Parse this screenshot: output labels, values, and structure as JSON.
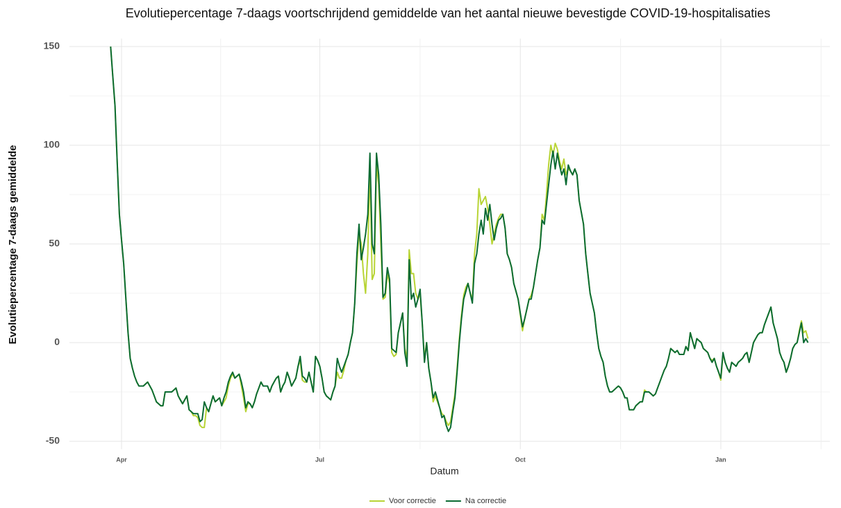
{
  "chart_data": {
    "type": "line",
    "title": "Evolutiepercentage 7-daags  voortschrijdend gemiddelde van het aantal nieuwe bevestigde COVID-19-hospitalisaties",
    "x_label": "Datum",
    "y_label": "Evolutiepercentage 7-daags gemiddelde",
    "categories": [
      null,
      null,
      null,
      null,
      null,
      "Apr",
      null,
      null,
      null,
      null,
      null,
      null,
      null,
      null,
      null,
      null,
      null,
      null,
      null,
      null,
      null,
      null,
      null,
      null,
      null,
      null,
      null,
      null,
      null,
      null,
      null,
      null,
      null,
      null,
      null,
      null,
      null,
      null,
      null,
      null,
      null,
      null,
      null,
      null,
      null,
      null,
      null,
      null,
      null,
      null,
      null,
      null,
      null,
      null,
      null,
      null,
      null,
      null,
      null,
      null,
      null,
      null,
      null,
      null,
      null,
      null,
      null,
      null,
      null,
      null,
      null,
      null,
      null,
      null,
      null,
      null,
      null,
      null,
      null,
      null,
      null,
      null,
      null,
      null,
      null,
      null,
      null,
      null,
      null,
      null,
      null,
      null,
      null,
      null,
      null,
      null,
      "Jul",
      null,
      null,
      null,
      null,
      null,
      null,
      null,
      null,
      null,
      null,
      null,
      null,
      null,
      null,
      null,
      null,
      null,
      null,
      null,
      null,
      null,
      null,
      null,
      null,
      null,
      null,
      null,
      null,
      null,
      null,
      null,
      null,
      null,
      null,
      null,
      null,
      null,
      null,
      null,
      null,
      null,
      null,
      null,
      null,
      null,
      null,
      null,
      null,
      null,
      null,
      null,
      null,
      null,
      null,
      null,
      null,
      null,
      null,
      null,
      null,
      null,
      null,
      null,
      null,
      null,
      null,
      null,
      null,
      null,
      null,
      null,
      null,
      null,
      null,
      null,
      null,
      null,
      null,
      null,
      null,
      null,
      null,
      null,
      null,
      null,
      null,
      null,
      null,
      null,
      null,
      null,
      "Oct",
      null,
      null,
      null,
      null,
      null,
      null,
      null,
      null,
      null,
      null,
      null,
      null,
      null,
      null,
      null,
      null,
      null,
      null,
      null,
      null,
      null,
      null,
      null,
      null,
      null,
      null,
      null,
      null,
      null,
      null,
      null,
      null,
      null,
      null,
      null,
      null,
      null,
      null,
      null,
      null,
      null,
      null,
      null,
      null,
      null,
      null,
      null,
      null,
      null,
      null,
      null,
      null,
      null,
      null,
      null,
      null,
      null,
      null,
      null,
      null,
      null,
      null,
      null,
      null,
      null,
      null,
      null,
      null,
      null,
      null,
      null,
      null,
      null,
      null,
      null,
      null,
      null,
      null,
      null,
      null,
      null,
      null,
      null,
      null,
      null,
      null,
      null,
      null,
      null,
      null,
      null,
      "Jan",
      null,
      null,
      null,
      null,
      null,
      null,
      null,
      null,
      null,
      null,
      null,
      null,
      null,
      null,
      null,
      null,
      null,
      null,
      null,
      null,
      null,
      null,
      null,
      null,
      null,
      null,
      null,
      null,
      null,
      null,
      null,
      null,
      null,
      null,
      null,
      null,
      null,
      null,
      null,
      null
    ],
    "series": [
      {
        "name": "Voor correctie",
        "color": "#b8d435",
        "values": [
          150,
          135,
          120,
          92,
          65,
          52,
          40,
          22,
          5,
          -8,
          -13,
          -17,
          -20,
          -22,
          -22,
          -22,
          -21,
          -20,
          -22,
          -24,
          -27,
          -30,
          -31,
          -32,
          -32,
          -25,
          -25,
          -25,
          -25,
          -24,
          -23,
          -27,
          -29,
          -31,
          -29,
          -27,
          -34,
          -35,
          -37,
          -37,
          -38,
          -42,
          -43,
          -43,
          -33,
          -35,
          -31,
          -27,
          -30,
          -29,
          -28,
          -32,
          -30,
          -28,
          -22,
          -18,
          -16,
          -18,
          -17,
          -16,
          -22,
          -28,
          -35,
          -31,
          -31,
          -33,
          -30,
          -26,
          -23,
          -20,
          -22,
          -22,
          -22,
          -25,
          -22,
          -20,
          -18,
          -17,
          -25,
          -22,
          -20,
          -15,
          -18,
          -22,
          -20,
          -18,
          -12,
          -9,
          -19,
          -20,
          -20,
          -15,
          -20,
          -25,
          -7,
          -9,
          -12,
          -18,
          -25,
          -27,
          -28,
          -29,
          -25,
          -22,
          -15,
          -18,
          -18,
          -14,
          -9,
          -6,
          0,
          5,
          20,
          40,
          55,
          50,
          35,
          25,
          45,
          90,
          32,
          35,
          90,
          80,
          50,
          22,
          23,
          35,
          30,
          -5,
          -7,
          -6,
          5,
          10,
          15,
          -3,
          -8,
          47,
          35,
          35,
          25,
          22,
          25,
          10,
          -8,
          0,
          -13,
          -20,
          -30,
          -27,
          -30,
          -33,
          -36,
          -37,
          -40,
          -42,
          -40,
          -33,
          -26,
          -13,
          2,
          14,
          24,
          28,
          30,
          25,
          22,
          45,
          55,
          78,
          70,
          72,
          74,
          68,
          60,
          50,
          55,
          60,
          63,
          65,
          65,
          58,
          45,
          42,
          38,
          30,
          26,
          22,
          14,
          6,
          12,
          17,
          22,
          24,
          28,
          35,
          42,
          48,
          65,
          62,
          75,
          90,
          100,
          95,
          101,
          98,
          92,
          88,
          93,
          85,
          88,
          87,
          85,
          88,
          85,
          72,
          66,
          60,
          45,
          35,
          25,
          20,
          15,
          5,
          -3,
          -7,
          -10,
          -17,
          -22,
          -25,
          -25,
          -24,
          -23,
          -22,
          -23,
          -25,
          -28,
          -28,
          -34,
          -34,
          -34,
          -32,
          -31,
          -30,
          -30,
          -24,
          -25,
          -25,
          -26,
          -27,
          -26,
          -23,
          -20,
          -17,
          -14,
          -12,
          -8,
          -3,
          -4,
          -5,
          -4,
          -6,
          -6,
          -6,
          -2,
          -4,
          5,
          1,
          -3,
          2,
          1,
          0,
          -3,
          -4,
          -5,
          -8,
          -9,
          -8,
          -12,
          -15,
          -19,
          -6,
          -10,
          -13,
          -15,
          -10,
          -11,
          -12,
          -10,
          -9,
          -8,
          -6,
          -5,
          -10,
          -5,
          0,
          2,
          4,
          5,
          5,
          9,
          12,
          15,
          18,
          10,
          6,
          2,
          -5,
          -8,
          -10,
          -15,
          -12,
          -8,
          -3,
          -1,
          0,
          6,
          11,
          5,
          6,
          2
        ]
      },
      {
        "name": "Na correctie",
        "color": "#0b6b33",
        "values": [
          150,
          135,
          120,
          92,
          65,
          52,
          40,
          22,
          5,
          -8,
          -13,
          -17,
          -20,
          -22,
          -22,
          -22,
          -21,
          -20,
          -22,
          -24,
          -27,
          -30,
          -31,
          -32,
          -32,
          -25,
          -25,
          -25,
          -25,
          -24,
          -23,
          -27,
          -29,
          -31,
          -29,
          -27,
          -34,
          -35,
          -36,
          -36,
          -36,
          -40,
          -39,
          -30,
          -33,
          -35,
          -31,
          -27,
          -30,
          -29,
          -28,
          -32,
          -28,
          -25,
          -20,
          -17,
          -15,
          -18,
          -17,
          -16,
          -20,
          -25,
          -33,
          -30,
          -31,
          -33,
          -30,
          -26,
          -23,
          -20,
          -22,
          -22,
          -22,
          -25,
          -22,
          -20,
          -18,
          -17,
          -25,
          -22,
          -20,
          -15,
          -18,
          -22,
          -20,
          -18,
          -12,
          -7,
          -17,
          -18,
          -20,
          -15,
          -20,
          -25,
          -7,
          -9,
          -12,
          -18,
          -25,
          -27,
          -28,
          -29,
          -25,
          -22,
          -8,
          -12,
          -15,
          -12,
          -9,
          -6,
          0,
          5,
          20,
          45,
          60,
          42,
          48,
          55,
          65,
          96,
          50,
          45,
          96,
          85,
          60,
          23,
          25,
          38,
          32,
          -3,
          -4,
          -5,
          5,
          10,
          15,
          -5,
          -12,
          42,
          22,
          25,
          18,
          22,
          27,
          10,
          -10,
          0,
          -13,
          -20,
          -28,
          -25,
          -29,
          -33,
          -38,
          -37,
          -42,
          -45,
          -43,
          -35,
          -28,
          -15,
          0,
          12,
          22,
          26,
          30,
          25,
          20,
          40,
          45,
          55,
          62,
          55,
          68,
          62,
          70,
          60,
          52,
          58,
          62,
          63,
          65,
          58,
          45,
          42,
          38,
          30,
          26,
          22,
          15,
          8,
          12,
          17,
          22,
          22,
          28,
          35,
          42,
          48,
          62,
          60,
          70,
          80,
          90,
          97,
          88,
          96,
          90,
          85,
          88,
          80,
          90,
          87,
          85,
          88,
          85,
          72,
          66,
          60,
          45,
          35,
          25,
          20,
          15,
          5,
          -3,
          -7,
          -10,
          -17,
          -22,
          -25,
          -25,
          -24,
          -23,
          -22,
          -23,
          -25,
          -28,
          -28,
          -34,
          -34,
          -34,
          -32,
          -31,
          -30,
          -30,
          -25,
          -25,
          -25,
          -26,
          -27,
          -26,
          -23,
          -20,
          -17,
          -14,
          -12,
          -8,
          -3,
          -4,
          -5,
          -4,
          -6,
          -6,
          -6,
          -2,
          -4,
          5,
          1,
          -3,
          2,
          1,
          0,
          -3,
          -4,
          -5,
          -8,
          -10,
          -8,
          -12,
          -15,
          -18,
          -5,
          -10,
          -13,
          -15,
          -10,
          -11,
          -12,
          -10,
          -9,
          -8,
          -6,
          -5,
          -10,
          -5,
          0,
          2,
          4,
          5,
          5,
          9,
          12,
          15,
          18,
          10,
          6,
          2,
          -5,
          -8,
          -10,
          -15,
          -12,
          -8,
          -3,
          -1,
          0,
          5,
          10,
          0,
          2,
          0
        ]
      }
    ],
    "ylim": [
      -54,
      154
    ],
    "yticks": [
      -50,
      0,
      50,
      100,
      150
    ],
    "grid": true,
    "legend": "bottom"
  }
}
